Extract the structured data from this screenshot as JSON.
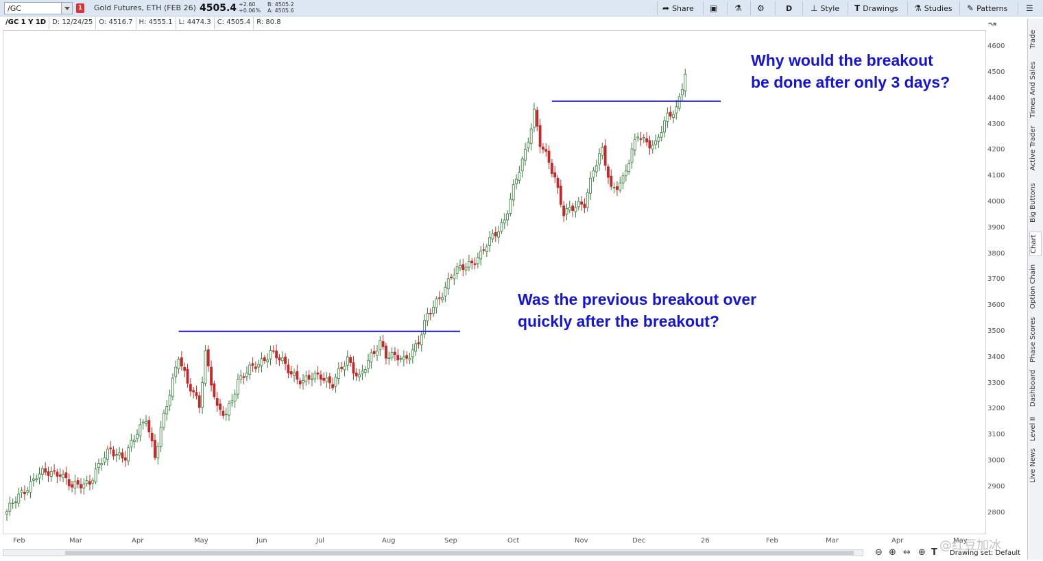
{
  "toolbar": {
    "symbol": "/GC",
    "link_badge": "1",
    "description": "Gold Futures, ETH (FEB 26)",
    "last_price": "4505.4",
    "net_change": "+2.60",
    "pct_change": "+0.06%",
    "bid": "B: 4505.2",
    "ask": "A: 4505.6",
    "share_label": "Share",
    "aggregation_label": "D",
    "style_label": "Style",
    "drawings_label": "Drawings",
    "studies_label": "Studies",
    "patterns_label": "Patterns"
  },
  "infobar": {
    "symbol_period": "/GC 1 Y 1D",
    "date": "D: 12/24/25",
    "open": "O: 4516.7",
    "high": "H: 4555.1",
    "low": "L: 4474.3",
    "close": "C: 4505.4",
    "range": "R: 80.8"
  },
  "side_tabs": [
    "Trade",
    "Times And Sales",
    "Active Trader",
    "Big Buttons",
    "Chart",
    "Option Chain",
    "Phase Scores",
    "Dashboard",
    "Level II",
    "Live News"
  ],
  "active_side_tab": "Chart",
  "annotations": {
    "top_line1": "Why would the breakout",
    "top_line2": "be done after only 3 days?",
    "mid_line1": "Was the previous breakout over",
    "mid_line2": "quickly after the breakout?"
  },
  "bottom": {
    "drawing_set": "Drawing set: Default",
    "watermark": "@红豆加冰"
  },
  "colors": {
    "up": "#2e7d32",
    "down": "#c62828",
    "line": "#1515d6",
    "note": "#1515d6"
  },
  "chart_data": {
    "type": "candlestick",
    "x_ticks": [
      "Feb",
      "Mar",
      "Apr",
      "May",
      "Jun",
      "Jul",
      "Aug",
      "Sep",
      "Oct",
      "Nov",
      "Dec",
      "26",
      "Feb",
      "Mar",
      "Apr",
      "May"
    ],
    "y_ticks": [
      2800,
      2900,
      3000,
      3100,
      3200,
      3300,
      3400,
      3500,
      3600,
      3700,
      3800,
      3900,
      4000,
      4100,
      4200,
      4300,
      4400,
      4500,
      4600
    ],
    "ylim": [
      2725,
      4635
    ],
    "trading_days": 230,
    "waypoints": [
      [
        0,
        2810
      ],
      [
        10,
        2950
      ],
      [
        18,
        2965
      ],
      [
        22,
        2900
      ],
      [
        28,
        2930
      ],
      [
        35,
        3050
      ],
      [
        40,
        3020
      ],
      [
        47,
        3180
      ],
      [
        50,
        3020
      ],
      [
        53,
        3170
      ],
      [
        58,
        3420
      ],
      [
        61,
        3300
      ],
      [
        65,
        3220
      ],
      [
        67,
        3430
      ],
      [
        71,
        3200
      ],
      [
        74,
        3180
      ],
      [
        78,
        3320
      ],
      [
        85,
        3380
      ],
      [
        89,
        3430
      ],
      [
        95,
        3360
      ],
      [
        100,
        3310
      ],
      [
        106,
        3340
      ],
      [
        110,
        3300
      ],
      [
        115,
        3400
      ],
      [
        119,
        3330
      ],
      [
        124,
        3420
      ],
      [
        126,
        3470
      ],
      [
        128,
        3420
      ],
      [
        134,
        3390
      ],
      [
        139,
        3470
      ],
      [
        142,
        3560
      ],
      [
        150,
        3720
      ],
      [
        156,
        3770
      ],
      [
        160,
        3800
      ],
      [
        168,
        3940
      ],
      [
        175,
        4200
      ],
      [
        178,
        4360
      ],
      [
        180,
        4230
      ],
      [
        185,
        4100
      ],
      [
        188,
        3970
      ],
      [
        192,
        3980
      ],
      [
        195,
        4000
      ],
      [
        198,
        4140
      ],
      [
        201,
        4200
      ],
      [
        204,
        4050
      ],
      [
        208,
        4100
      ],
      [
        213,
        4260
      ],
      [
        216,
        4240
      ],
      [
        219,
        4230
      ],
      [
        223,
        4330
      ],
      [
        226,
        4370
      ],
      [
        229,
        4505
      ]
    ],
    "levels": [
      {
        "price": 3506,
        "from_day": 58,
        "to_day": 153
      },
      {
        "price": 4395,
        "from_day": 184,
        "to_day": 241
      }
    ]
  }
}
